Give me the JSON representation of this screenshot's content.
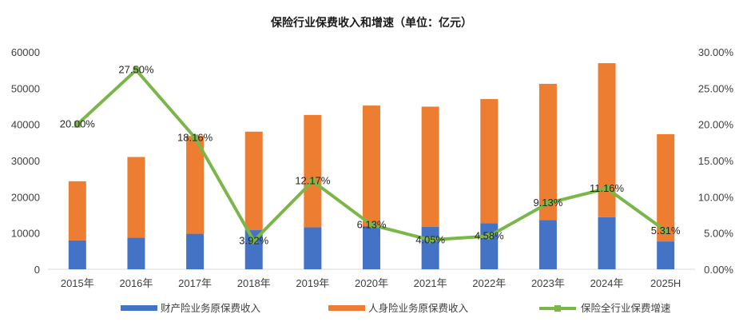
{
  "chart_data": {
    "type": "bar",
    "title": "保险行业保费收入和增速（单位：亿元）",
    "categories": [
      "2015年",
      "2016年",
      "2017年",
      "2018年",
      "2019年",
      "2020年",
      "2021年",
      "2022年",
      "2023年",
      "2024年",
      "2025H"
    ],
    "series": [
      {
        "name": "财产险业务原保费收入",
        "kind": "stacked-bar",
        "axis": "left",
        "color": "#4472C4",
        "values": [
          8000,
          8700,
          9800,
          10800,
          11600,
          11900,
          11700,
          12700,
          13600,
          14400,
          7700
        ]
      },
      {
        "name": "人身险业务原保费收入",
        "kind": "stacked-bar",
        "axis": "left",
        "color": "#ED7D31",
        "values": [
          16300,
          22300,
          27000,
          27200,
          31000,
          33300,
          33200,
          34300,
          37600,
          42500,
          29600
        ]
      },
      {
        "name": "保险全行业保费增速",
        "kind": "line",
        "axis": "right",
        "color": "#7AB648",
        "values": [
          20.0,
          27.5,
          18.16,
          3.92,
          12.17,
          6.13,
          4.05,
          4.58,
          9.13,
          11.16,
          5.31
        ],
        "labels": [
          "20.00%",
          "27.50%",
          "18.16%",
          "3.92%",
          "12.17%",
          "6.13%",
          "4.05%",
          "4.58%",
          "9.13%",
          "11.16%",
          "5.31%"
        ]
      }
    ],
    "y_left": {
      "min": 0,
      "max": 60000,
      "ticks": [
        0,
        10000,
        20000,
        30000,
        40000,
        50000,
        60000
      ],
      "tick_labels": [
        "0",
        "10000",
        "20000",
        "30000",
        "40000",
        "50000",
        "60000"
      ]
    },
    "y_right": {
      "min": 0,
      "max": 30,
      "ticks": [
        0,
        5,
        10,
        15,
        20,
        25,
        30
      ],
      "tick_labels": [
        "0.00%",
        "5.00%",
        "10.00%",
        "15.00%",
        "20.00%",
        "25.00%",
        "30.00%"
      ]
    },
    "grid": false,
    "legend_position": "bottom"
  }
}
